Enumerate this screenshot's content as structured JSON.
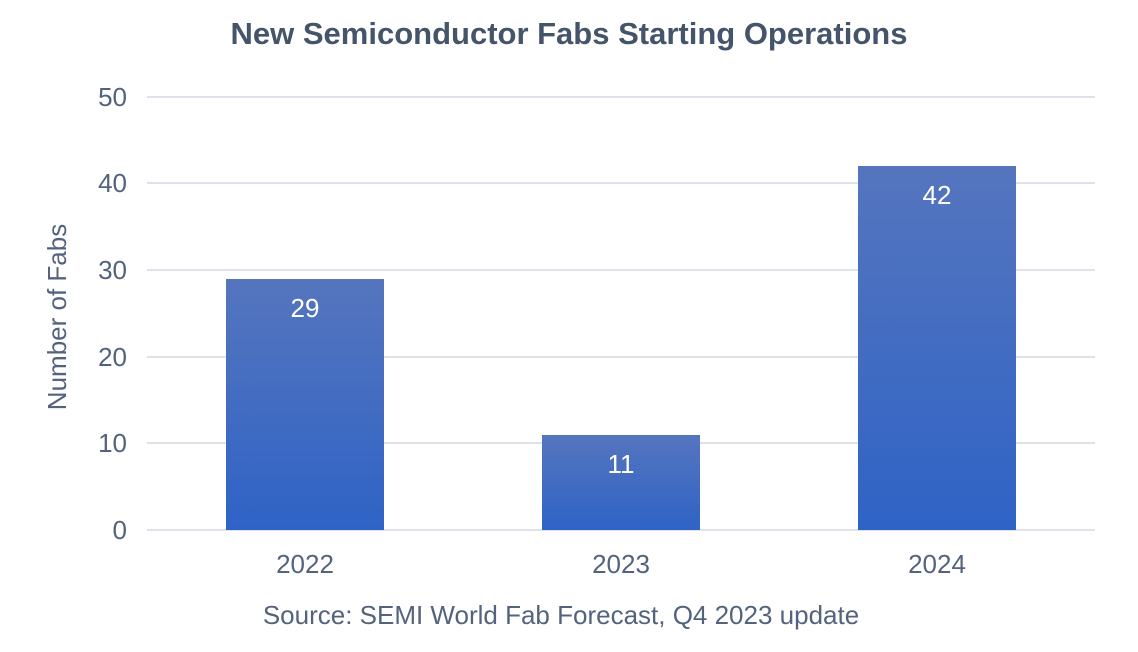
{
  "chart_data": {
    "type": "bar",
    "title": "New Semiconductor Fabs Starting Operations",
    "categories": [
      "2022",
      "2023",
      "2024"
    ],
    "values": [
      29,
      11,
      42
    ],
    "xlabel": "",
    "ylabel": "Number of Fabs",
    "ylim": [
      0,
      50
    ],
    "yticks": [
      0,
      10,
      20,
      30,
      40,
      50
    ],
    "grid": true,
    "legend": false,
    "data_labels": [
      "29",
      "11",
      "42"
    ],
    "source": "Source: SEMI World Fab Forecast, Q4 2023 update",
    "colors": {
      "background": "#FFFFFF",
      "title_text": "#44546A",
      "axis_text": "#54637D",
      "gridline": "#DEE2EB",
      "bar_gradient_top": "#5575BE",
      "bar_gradient_bottom": "#2F63C6",
      "data_label_text": "#FFFFFF"
    }
  }
}
